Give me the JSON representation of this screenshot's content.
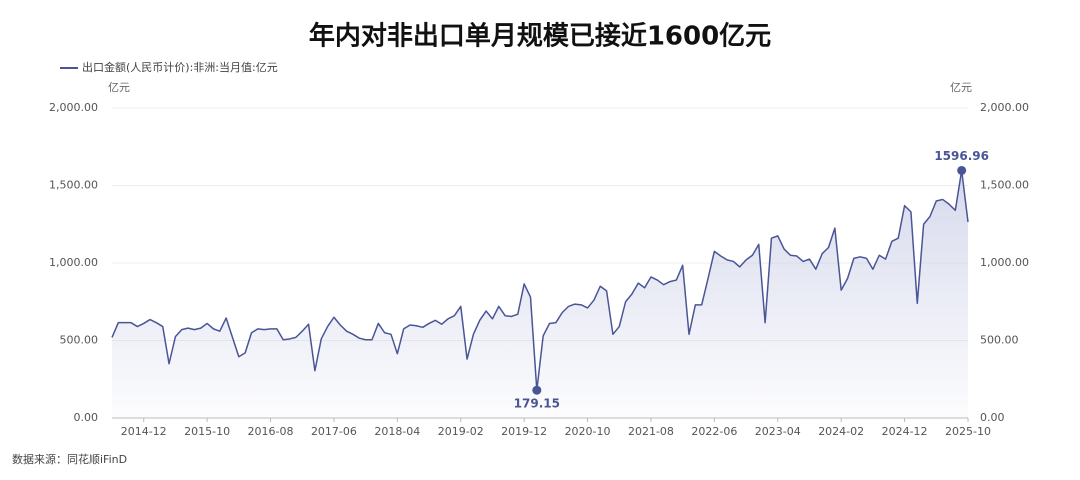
{
  "chart_data": {
    "type": "line",
    "title": "年内对非出口单月规模已接近1600亿元",
    "y_unit": "亿元",
    "y2_unit": "亿元",
    "source": "数据来源：同花顺iFinD",
    "categories": [
      null,
      null,
      null,
      null,
      null,
      "2014-12",
      null,
      null,
      null,
      null,
      null,
      null,
      null,
      null,
      null,
      "2015-10",
      null,
      null,
      null,
      null,
      null,
      null,
      null,
      null,
      null,
      "2016-08",
      null,
      null,
      null,
      null,
      null,
      null,
      null,
      null,
      null,
      "2017-06",
      null,
      null,
      null,
      null,
      null,
      null,
      null,
      null,
      null,
      "2018-04",
      null,
      null,
      null,
      null,
      null,
      null,
      null,
      null,
      null,
      "2019-02",
      null,
      null,
      null,
      null,
      null,
      null,
      null,
      null,
      null,
      "2019-12",
      null,
      null,
      null,
      null,
      null,
      null,
      null,
      null,
      null,
      "2020-10",
      null,
      null,
      null,
      null,
      null,
      null,
      null,
      null,
      null,
      "2021-08",
      null,
      null,
      null,
      null,
      null,
      null,
      null,
      null,
      null,
      "2022-06",
      null,
      null,
      null,
      null,
      null,
      null,
      null,
      null,
      null,
      "2023-04",
      null,
      null,
      null,
      null,
      null,
      null,
      null,
      null,
      null,
      "2024-02",
      null,
      null,
      null,
      null,
      null,
      null,
      null,
      null,
      null,
      "2024-12",
      null,
      null,
      null,
      null,
      null,
      null,
      null,
      null,
      null,
      "2025-10"
    ],
    "series": [
      {
        "name": "出口金额(人民币计价):非洲:当月值:亿元",
        "color": "#4a5596",
        "values": [
          520,
          615,
          615,
          615,
          590,
          610,
          635,
          615,
          590,
          350,
          525,
          570,
          580,
          570,
          580,
          610,
          575,
          560,
          645,
          520,
          395,
          420,
          550,
          575,
          570,
          575,
          575,
          505,
          510,
          520,
          560,
          605,
          305,
          510,
          590,
          650,
          600,
          560,
          540,
          515,
          505,
          505,
          610,
          550,
          540,
          415,
          575,
          600,
          595,
          585,
          610,
          630,
          605,
          640,
          660,
          720,
          380,
          540,
          630,
          690,
          640,
          720,
          660,
          655,
          670,
          865,
          780,
          179.15,
          530,
          610,
          615,
          680,
          720,
          735,
          730,
          710,
          760,
          850,
          820,
          540,
          590,
          750,
          800,
          870,
          840,
          910,
          890,
          860,
          880,
          890,
          985,
          540,
          730,
          730,
          900,
          1075,
          1045,
          1020,
          1010,
          975,
          1020,
          1050,
          1120,
          615,
          1160,
          1175,
          1090,
          1050,
          1045,
          1010,
          1025,
          960,
          1060,
          1100,
          1225,
          825,
          900,
          1030,
          1040,
          1030,
          960,
          1050,
          1025,
          1140,
          1160,
          1370,
          1330,
          740,
          1250,
          1300,
          1400,
          1410,
          1380,
          1340,
          1596.96,
          1265
        ]
      }
    ],
    "ylim": [
      0,
      2000
    ],
    "yticks": [
      {
        "value": 0,
        "label": "0.00"
      },
      {
        "value": 500,
        "label": "500.00"
      },
      {
        "value": 1000,
        "label": "1,000.00"
      },
      {
        "value": 1500,
        "label": "1,500.00"
      },
      {
        "value": 2000,
        "label": "2,000.00"
      }
    ],
    "y2lim": [
      0,
      2000
    ],
    "y2ticks": [
      {
        "value": 0,
        "label": "0.00"
      },
      {
        "value": 500,
        "label": "500.00"
      },
      {
        "value": 1000,
        "label": "1,000.00"
      },
      {
        "value": 1500,
        "label": "1,500.00"
      },
      {
        "value": 2000,
        "label": "2,000.00"
      }
    ],
    "grid": true,
    "legend": "top-left"
  }
}
